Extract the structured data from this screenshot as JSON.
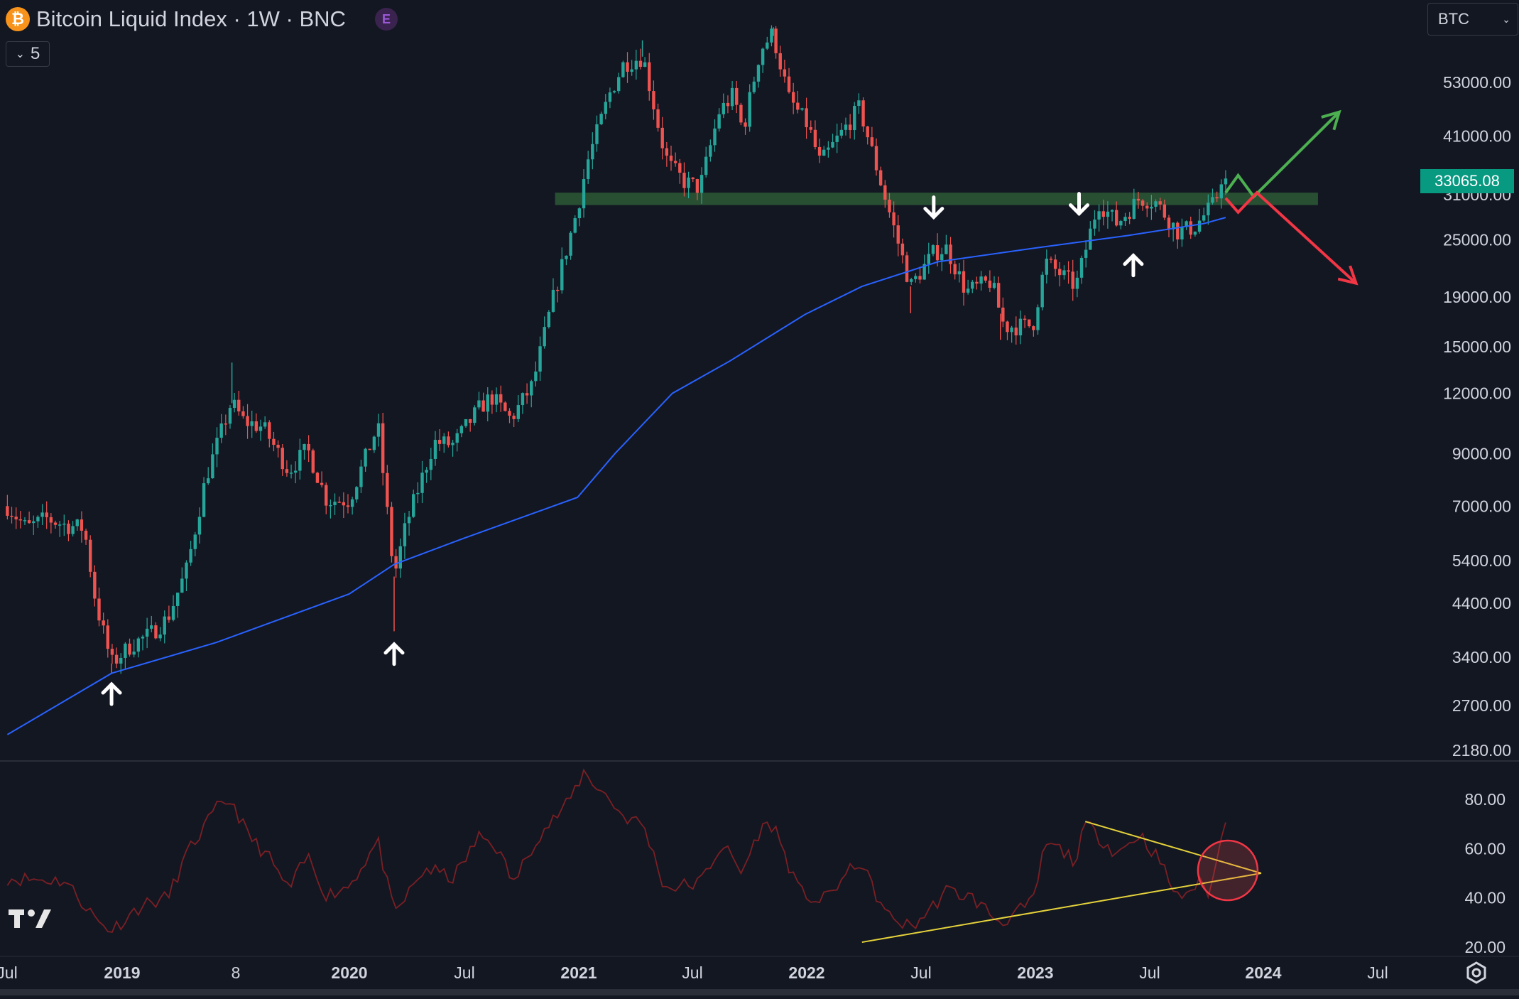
{
  "header": {
    "title": "Bitcoin Liquid Index · 1W · BNC",
    "coin_glyph": "₿",
    "exchange_badge": "E",
    "indicator_count": "5",
    "symbol_select": "BTC",
    "last_price": "33065.08"
  },
  "colors": {
    "background": "#131722",
    "up": "#26a69a",
    "down": "#ef5350",
    "ma": "#2962ff",
    "zone": "#2e5e37",
    "rsi": "#7a1f24",
    "trend": "#e5d23b",
    "arrow_up": "#4caf50",
    "arrow_down": "#f23645"
  },
  "chart_data": [
    {
      "type": "candlestick",
      "timeframe": "1W",
      "scale": "log",
      "ylim": [
        2180,
        63000
      ],
      "y_ticks": [
        "53000.00",
        "41000.00",
        "31000.00",
        "25000.00",
        "19000.00",
        "15000.00",
        "12000.00",
        "9000.00",
        "7000.00",
        "5400.00",
        "4400.00",
        "3400.00",
        "2700.00",
        "2180.00"
      ],
      "x_ticks": [
        "Jul",
        "2019",
        "8",
        "2020",
        "Jul",
        "2021",
        "Jul",
        "2022",
        "Jul",
        "2023",
        "Jul",
        "2024",
        "Jul"
      ],
      "close_path": [
        [
          "2018-07-01",
          7000
        ],
        [
          "2018-08-01",
          6300
        ],
        [
          "2018-09-01",
          6600
        ],
        [
          "2018-10-01",
          6400
        ],
        [
          "2018-11-01",
          6300
        ],
        [
          "2018-11-20",
          4400
        ],
        [
          "2018-12-15",
          3300
        ],
        [
          "2019-01-15",
          3600
        ],
        [
          "2019-02-15",
          3800
        ],
        [
          "2019-03-15",
          4100
        ],
        [
          "2019-04-15",
          5200
        ],
        [
          "2019-05-15",
          8000
        ],
        [
          "2019-06-25",
          11500
        ],
        [
          "2019-07-15",
          10500
        ],
        [
          "2019-08-15",
          10200
        ],
        [
          "2019-09-25",
          8300
        ],
        [
          "2019-10-25",
          9200
        ],
        [
          "2019-11-25",
          7200
        ],
        [
          "2019-12-31",
          7200
        ],
        [
          "2020-02-15",
          10300
        ],
        [
          "2020-03-12",
          5000
        ],
        [
          "2020-03-31",
          6400
        ],
        [
          "2020-05-15",
          9500
        ],
        [
          "2020-06-15",
          9400
        ],
        [
          "2020-07-27",
          11200
        ],
        [
          "2020-08-15",
          11800
        ],
        [
          "2020-09-15",
          10600
        ],
        [
          "2020-10-20",
          12500
        ],
        [
          "2020-11-20",
          18500
        ],
        [
          "2020-12-31",
          29000
        ],
        [
          "2021-01-15",
          36000
        ],
        [
          "2021-02-20",
          50000
        ],
        [
          "2021-03-15",
          58000
        ],
        [
          "2021-04-15",
          60000
        ],
        [
          "2021-05-15",
          40000
        ],
        [
          "2021-05-25",
          36000
        ],
        [
          "2021-06-20",
          33000
        ],
        [
          "2021-07-15",
          32000
        ],
        [
          "2021-08-15",
          46000
        ],
        [
          "2021-09-07",
          50000
        ],
        [
          "2021-09-22",
          42000
        ],
        [
          "2021-10-20",
          62000
        ],
        [
          "2021-11-09",
          67000
        ],
        [
          "2021-12-05",
          49000
        ],
        [
          "2022-01-05",
          43000
        ],
        [
          "2022-01-24",
          36000
        ],
        [
          "2022-03-28",
          47000
        ],
        [
          "2022-05-10",
          30000
        ],
        [
          "2022-06-18",
          20000
        ],
        [
          "2022-07-25",
          23500
        ],
        [
          "2022-08-15",
          24000
        ],
        [
          "2022-09-15",
          19500
        ],
        [
          "2022-10-25",
          20500
        ],
        [
          "2022-11-15",
          16500
        ],
        [
          "2022-12-31",
          16600
        ],
        [
          "2023-01-20",
          22500
        ],
        [
          "2023-03-10",
          20000
        ],
        [
          "2023-04-15",
          30000
        ],
        [
          "2023-05-15",
          27000
        ],
        [
          "2023-06-20",
          30500
        ],
        [
          "2023-07-15",
          30000
        ],
        [
          "2023-08-20",
          26000
        ],
        [
          "2023-09-15",
          26500
        ],
        [
          "2023-10-20",
          30000
        ],
        [
          "2023-10-31",
          34500
        ],
        [
          "2023-11-05",
          33065
        ]
      ],
      "wick_extremes": [
        [
          "2018-12-15",
          3150
        ],
        [
          "2019-06-26",
          13900
        ],
        [
          "2020-03-12",
          3850
        ],
        [
          "2021-04-14",
          64800
        ],
        [
          "2021-11-10",
          69000
        ],
        [
          "2022-06-18",
          17600
        ],
        [
          "2022-11-09",
          15500
        ]
      ],
      "moving_average": [
        [
          "2018-07-01",
          2350
        ],
        [
          "2018-12-15",
          3150
        ],
        [
          "2019-06-01",
          3650
        ],
        [
          "2019-12-31",
          4600
        ],
        [
          "2020-03-12",
          5300
        ],
        [
          "2020-07-01",
          6000
        ],
        [
          "2020-12-31",
          7300
        ],
        [
          "2021-03-01",
          9000
        ],
        [
          "2021-06-01",
          12000
        ],
        [
          "2021-09-01",
          14000
        ],
        [
          "2021-12-31",
          17500
        ],
        [
          "2022-04-01",
          20000
        ],
        [
          "2022-08-01",
          22500
        ],
        [
          "2023-01-01",
          24000
        ],
        [
          "2023-06-01",
          25500
        ],
        [
          "2023-10-01",
          27000
        ],
        [
          "2023-11-05",
          27800
        ]
      ],
      "resistance_zone": {
        "from": "2020-11-25",
        "to": "2024-04-01",
        "low": 29500,
        "high": 31300
      },
      "reaction_arrows": [
        {
          "date": "2018-12-15",
          "price": 2850,
          "dir": "up"
        },
        {
          "date": "2020-03-12",
          "price": 3450,
          "dir": "up"
        },
        {
          "date": "2022-07-25",
          "price": 29200,
          "dir": "down"
        },
        {
          "date": "2023-03-15",
          "price": 29700,
          "dir": "down"
        },
        {
          "date": "2023-06-10",
          "price": 22100,
          "dir": "up"
        }
      ],
      "scenario_up": [
        [
          "2023-11-05",
          31300
        ],
        [
          "2023-11-25",
          34000
        ],
        [
          "2023-12-20",
          30700
        ],
        [
          "2024-05-05",
          46000
        ]
      ],
      "scenario_down": [
        [
          "2023-11-05",
          30500
        ],
        [
          "2023-11-25",
          28500
        ],
        [
          "2023-12-25",
          31300
        ],
        [
          "2024-06-01",
          20300
        ]
      ]
    },
    {
      "type": "line",
      "ylim": [
        20,
        90
      ],
      "y_ticks": [
        "80.00",
        "60.00",
        "40.00",
        "20.00"
      ],
      "values_path": [
        [
          "2018-07-01",
          48
        ],
        [
          "2018-10-01",
          47
        ],
        [
          "2018-11-25",
          30
        ],
        [
          "2018-12-15",
          27
        ],
        [
          "2019-02-01",
          37
        ],
        [
          "2019-03-15",
          40
        ],
        [
          "2019-04-15",
          58
        ],
        [
          "2019-06-01",
          76
        ],
        [
          "2019-06-25",
          80
        ],
        [
          "2019-07-20",
          66
        ],
        [
          "2019-08-25",
          56
        ],
        [
          "2019-09-25",
          43
        ],
        [
          "2019-10-25",
          57
        ],
        [
          "2019-11-25",
          41
        ],
        [
          "2019-12-31",
          45
        ],
        [
          "2020-02-15",
          63
        ],
        [
          "2020-03-12",
          33
        ],
        [
          "2020-05-01",
          52
        ],
        [
          "2020-06-15",
          48
        ],
        [
          "2020-07-27",
          65
        ],
        [
          "2020-08-20",
          62
        ],
        [
          "2020-09-20",
          46
        ],
        [
          "2020-10-25",
          64
        ],
        [
          "2020-12-15",
          78
        ],
        [
          "2021-01-10",
          91
        ],
        [
          "2021-02-20",
          80
        ],
        [
          "2021-03-15",
          73
        ],
        [
          "2021-04-15",
          70
        ],
        [
          "2021-05-20",
          44
        ],
        [
          "2021-07-15",
          46
        ],
        [
          "2021-08-20",
          62
        ],
        [
          "2021-09-20",
          50
        ],
        [
          "2021-10-20",
          68
        ],
        [
          "2021-11-10",
          70
        ],
        [
          "2021-12-20",
          43
        ],
        [
          "2022-01-25",
          38
        ],
        [
          "2022-03-28",
          55
        ],
        [
          "2022-05-10",
          33
        ],
        [
          "2022-06-18",
          28
        ],
        [
          "2022-07-15",
          34
        ],
        [
          "2022-08-15",
          43
        ],
        [
          "2022-09-25",
          40
        ],
        [
          "2022-11-09",
          30
        ],
        [
          "2022-12-31",
          38
        ],
        [
          "2023-01-20",
          62
        ],
        [
          "2023-02-10",
          60
        ],
        [
          "2023-03-10",
          55
        ],
        [
          "2023-03-25",
          70
        ],
        [
          "2023-05-15",
          58
        ],
        [
          "2023-06-20",
          66
        ],
        [
          "2023-07-20",
          56
        ],
        [
          "2023-08-20",
          40
        ],
        [
          "2023-09-25",
          46
        ],
        [
          "2023-10-10",
          42
        ],
        [
          "2023-10-25",
          58
        ],
        [
          "2023-11-05",
          73
        ]
      ],
      "trendline_support": [
        [
          "2022-04-01",
          22
        ],
        [
          "2024-01-01",
          50
        ]
      ],
      "trendline_resistance": [
        [
          "2023-03-25",
          71
        ],
        [
          "2024-01-01",
          50
        ]
      ],
      "highlight_circle": {
        "date": "2023-11-05",
        "value": 50
      }
    }
  ]
}
